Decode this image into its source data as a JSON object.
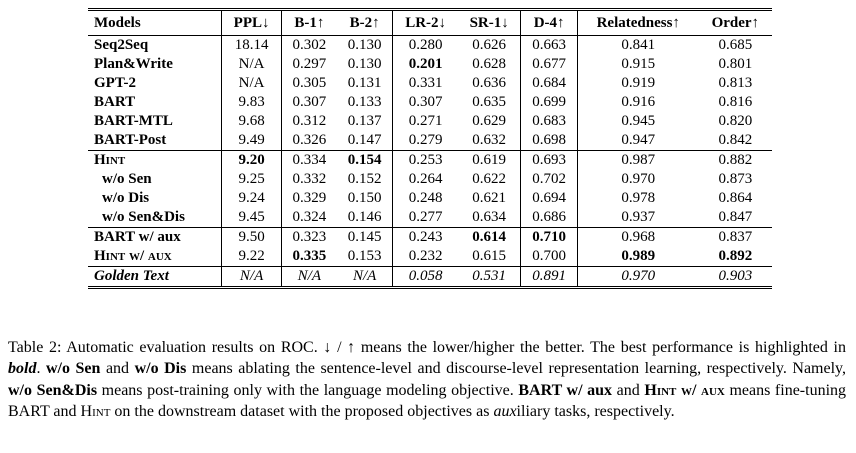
{
  "table": {
    "header": [
      "Models",
      "PPL↓",
      "B-1↑",
      "B-2↑",
      "LR-2↓",
      "SR-1↓",
      "D-4↑",
      "Relatedness↑",
      "Order↑"
    ],
    "groups": [
      [
        [
          "Seq2Seq",
          "18.14",
          "0.302",
          "0.130",
          "0.280",
          "0.626",
          "0.663",
          "0.841",
          "0.685"
        ],
        [
          "Plan&Write",
          "N/A",
          "0.297",
          "0.130",
          "0.201",
          "0.628",
          "0.677",
          "0.915",
          "0.801"
        ],
        [
          "GPT-2",
          "N/A",
          "0.305",
          "0.131",
          "0.331",
          "0.636",
          "0.684",
          "0.919",
          "0.813"
        ],
        [
          "BART",
          "9.83",
          "0.307",
          "0.133",
          "0.307",
          "0.635",
          "0.699",
          "0.916",
          "0.816"
        ],
        [
          "BART-MTL",
          "9.68",
          "0.312",
          "0.137",
          "0.271",
          "0.629",
          "0.683",
          "0.945",
          "0.820"
        ],
        [
          "BART-Post",
          "9.49",
          "0.326",
          "0.147",
          "0.279",
          "0.632",
          "0.698",
          "0.947",
          "0.842"
        ]
      ],
      [
        [
          "Hint",
          "9.20",
          "0.334",
          "0.154",
          "0.253",
          "0.619",
          "0.693",
          "0.987",
          "0.882"
        ],
        [
          "w/o Sen",
          "9.25",
          "0.332",
          "0.152",
          "0.264",
          "0.622",
          "0.702",
          "0.970",
          "0.873"
        ],
        [
          "w/o Dis",
          "9.24",
          "0.329",
          "0.150",
          "0.248",
          "0.621",
          "0.694",
          "0.978",
          "0.864"
        ],
        [
          "w/o Sen&Dis",
          "9.45",
          "0.324",
          "0.146",
          "0.277",
          "0.634",
          "0.686",
          "0.937",
          "0.847"
        ]
      ],
      [
        [
          "BART w/ aux",
          "9.50",
          "0.323",
          "0.145",
          "0.243",
          "0.614",
          "0.710",
          "0.968",
          "0.837"
        ],
        [
          "Hint w/ aux",
          "9.22",
          "0.335",
          "0.153",
          "0.232",
          "0.615",
          "0.700",
          "0.989",
          "0.892"
        ]
      ],
      [
        [
          "Golden Text",
          "N/A",
          "N/A",
          "N/A",
          "0.058",
          "0.531",
          "0.891",
          "0.970",
          "0.903"
        ]
      ]
    ]
  },
  "caption": [
    "Table 2: Automatic evaluation results on ROC. ↓ / ↑ means the lower/higher the better. The best performance is highlighted in ",
    "bold",
    ". ",
    "w/o Sen",
    " and ",
    "w/o Dis",
    " means ablating the sentence-level and discourse-level representation learning, respectively. Namely, ",
    "w/o Sen&Dis",
    " means post-training only with the language modeling objective. ",
    "BART w/ aux",
    " and ",
    "Hint w/ aux",
    " means fine-tuning BART and ",
    "Hint",
    " on the downstream dataset with the proposed objectives as ",
    "aux",
    "iliary tasks, respectively."
  ]
}
